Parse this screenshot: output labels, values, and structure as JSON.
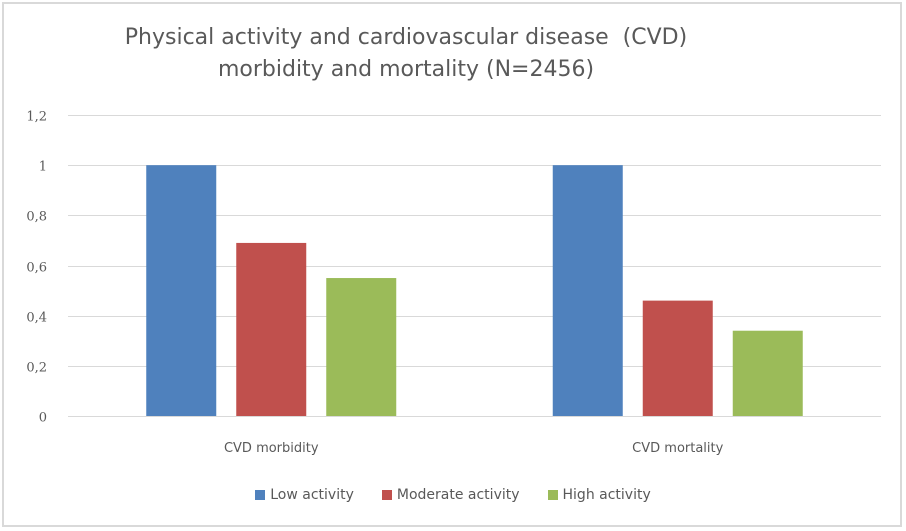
{
  "chart_data": {
    "type": "bar",
    "title": "Physical activity and cardiovascular disease  (CVD) morbidity and mortality (N=2456)",
    "title_lines": [
      "Physical activity and cardiovascular disease  (CVD)",
      "morbidity and mortality (N=2456)"
    ],
    "categories": [
      "CVD morbidity",
      "CVD mortality"
    ],
    "series": [
      {
        "name": "Low activity",
        "color": "#4f81bd",
        "values": [
          1.0,
          1.0
        ]
      },
      {
        "name": "Moderate activity",
        "color": "#c0504d",
        "values": [
          0.69,
          0.46
        ]
      },
      {
        "name": "High activity",
        "color": "#9bbb59",
        "values": [
          0.55,
          0.34
        ]
      }
    ],
    "xlabel": "",
    "ylabel": "",
    "ylim": [
      0,
      1.2
    ],
    "yticks": [
      0,
      0.2,
      0.4,
      0.6,
      0.8,
      1,
      1.2
    ],
    "ytick_labels": [
      "0",
      "0,2",
      "0,4",
      "0,6",
      "0,8",
      "1",
      "1,2"
    ],
    "grid": true,
    "legend_position": "bottom"
  }
}
